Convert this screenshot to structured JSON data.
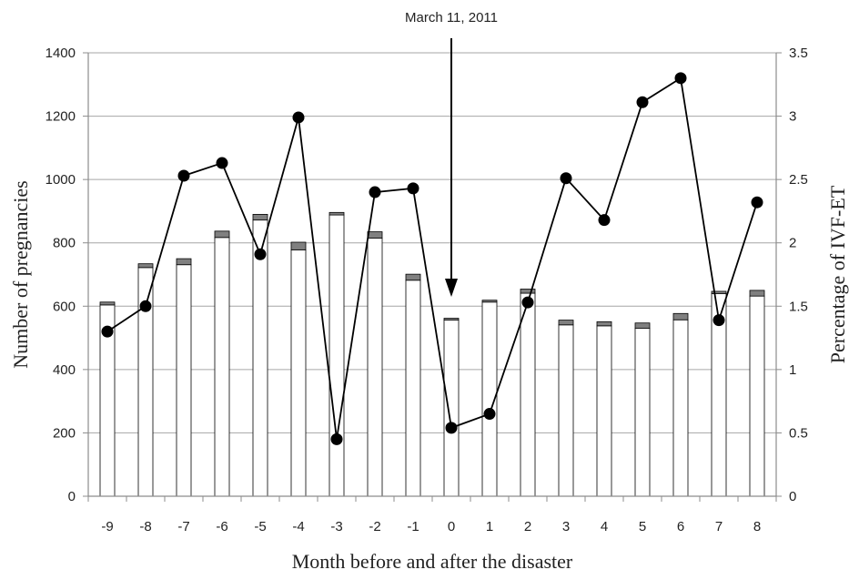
{
  "chart_data": {
    "type": "bar",
    "annotation": {
      "text": "March 11, 2011",
      "x": "0"
    },
    "xlabel": "Month before and after the disaster",
    "ylabel_left": "Number of pregnancies",
    "ylabel_right": "Percentage of IVF-ET",
    "categories": [
      "-9",
      "-8",
      "-7",
      "-6",
      "-5",
      "-4",
      "-3",
      "-2",
      "-1",
      "0",
      "1",
      "2",
      "3",
      "4",
      "5",
      "6",
      "7",
      "8"
    ],
    "ylim_left": [
      0,
      1400
    ],
    "yticks_left": [
      0,
      200,
      400,
      600,
      800,
      1000,
      1200,
      1400
    ],
    "ylim_right": [
      0,
      3.5
    ],
    "yticks_right": [
      0,
      0.5,
      1,
      1.5,
      2,
      2.5,
      3,
      3.5
    ],
    "grid": true,
    "bar_series": [
      {
        "values": [
          604,
          722,
          731,
          817,
          872,
          778,
          888,
          815,
          682,
          556,
          613,
          641,
          541,
          538,
          530,
          557,
          640,
          632
        ],
        "color": "#ffffff"
      },
      {
        "values": [
          9,
          12,
          19,
          20,
          18,
          24,
          8,
          20,
          19,
          6,
          6,
          13,
          15,
          13,
          17,
          20,
          7,
          18
        ],
        "color": "#808080"
      }
    ],
    "line_series": {
      "axis": "right",
      "values": [
        1.3,
        1.5,
        2.53,
        2.63,
        1.91,
        2.99,
        0.45,
        2.4,
        2.43,
        0.54,
        0.65,
        1.53,
        2.51,
        2.18,
        3.11,
        3.3,
        1.39,
        2.32
      ],
      "color": "#000000"
    }
  }
}
